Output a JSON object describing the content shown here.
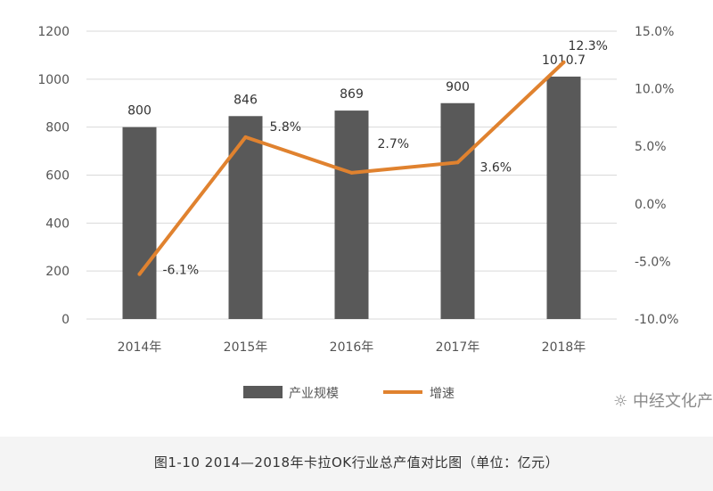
{
  "chart_data": {
    "type": "bar",
    "categories": [
      "2014年",
      "2015年",
      "2016年",
      "2017年",
      "2018年"
    ],
    "series": [
      {
        "name": "产业规模",
        "type": "bar",
        "axis": "left",
        "values": [
          800,
          846,
          869,
          900,
          1010.7
        ],
        "labels": [
          "800",
          "846",
          "869",
          "900",
          "1010.7"
        ]
      },
      {
        "name": "增速",
        "type": "line",
        "axis": "right",
        "values": [
          -6.1,
          5.8,
          2.7,
          3.6,
          12.3
        ],
        "labels": [
          "-6.1%",
          "5.8%",
          "2.7%",
          "3.6%",
          "12.3%"
        ]
      }
    ],
    "y_left": {
      "min": 0,
      "max": 1200,
      "ticks": [
        "0",
        "200",
        "400",
        "600",
        "800",
        "1000",
        "1200"
      ]
    },
    "y_right": {
      "min": -10,
      "max": 15,
      "ticks": [
        "-10.0%",
        "-5.0%",
        "0.0%",
        "5.0%",
        "10.0%",
        "15.0%"
      ]
    },
    "grid": true,
    "legend_position": "bottom",
    "colors": {
      "bar": "#595959",
      "line": "#e0822f",
      "grid": "#d9d9d9"
    }
  },
  "watermark": "中经文化产",
  "caption": "图1-10 2014—2018年卡拉OK行业总产值对比图（单位：亿元）"
}
